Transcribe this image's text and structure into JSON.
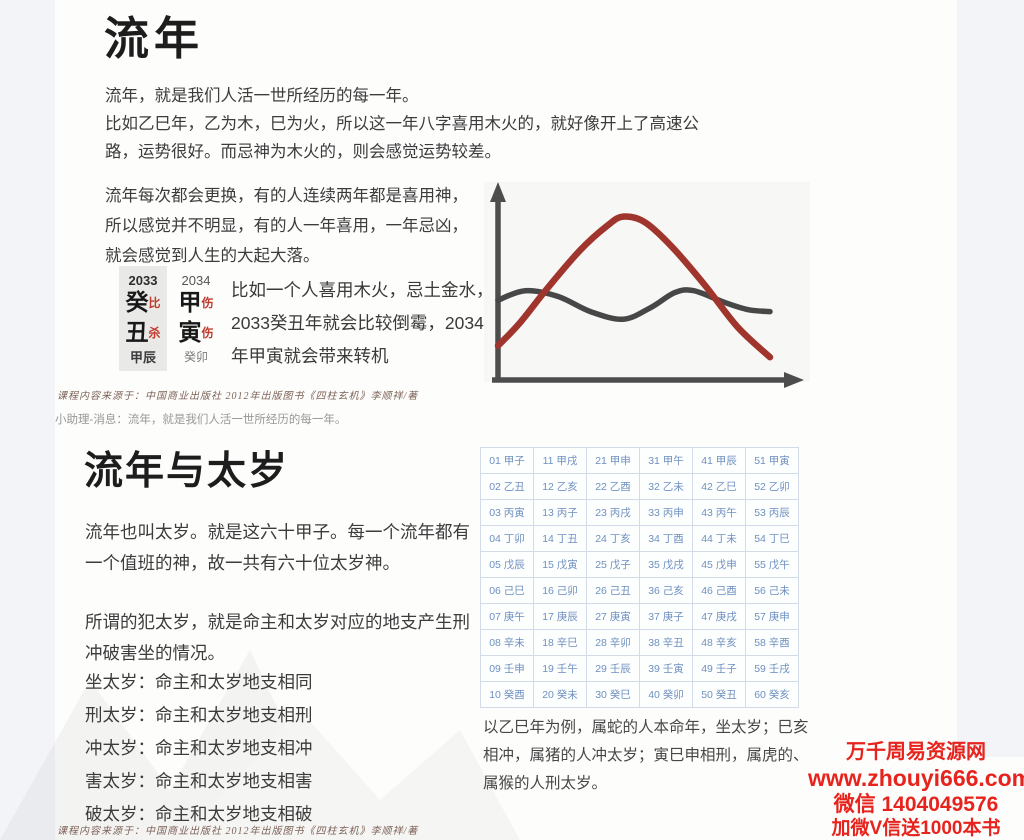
{
  "section_liunian": {
    "title": "流年",
    "para1": "流年，就是我们人活一世所经历的每一年。\n比如乙巳年，乙为木，巳为火，所以这一年八字喜用木火的，就好像开上了高速公\n路，运势很好。而忌神为木火的，则会感觉运势较差。",
    "para2": "流年每次都会更换，有的人连续两年都是喜用神，\n所以感觉并不明显，有的人一年喜用，一年忌凶，\n就会感觉到人生的大起大落。",
    "bazi_example": {
      "years": [
        {
          "year": "2033",
          "stem": "癸",
          "stem_tag": "比",
          "branch": "丑",
          "branch_tag": "杀",
          "hidden": "甲辰"
        },
        {
          "year": "2034",
          "stem": "甲",
          "stem_tag": "伤",
          "branch": "寅",
          "branch_tag": "伤",
          "hidden": "癸卯"
        }
      ],
      "caption": "比如一个人喜用木火，忌土金水，\n2033癸丑年就会比较倒霉，2034\n年甲寅就会带来转机",
      "tag_color": "#c23a2e",
      "highlight_bg": "#e9e9e8"
    },
    "source_note": "课程内容来源于：中国商业出版社 2012年出版图书《四柱玄机》李顺祥/著",
    "chat_message": "小助理-消息：流年，就是我们人活一世所经历的每一年。"
  },
  "section_taisui": {
    "title": "流年与太岁",
    "para1": "流年也叫太岁。就是这六十甲子。每一个流年都有\n一个值班的神，故一共有六十位太岁神。",
    "para2": "所谓的犯太岁，就是命主和太岁对应的地支产生刑\n冲破害坐的情况。",
    "rules": [
      "坐太岁：命主和太岁地支相同",
      "刑太岁：命主和太岁地支相刑",
      "冲太岁：命主和太岁地支相冲",
      "害太岁：命主和太岁地支相害",
      "破太岁：命主和太岁地支相破"
    ],
    "jiazi_table": {
      "text_color": "#6e90c0",
      "rows": [
        [
          "01 甲子",
          "11 甲戌",
          "21 甲申",
          "31 甲午",
          "41 甲辰",
          "51 甲寅"
        ],
        [
          "02 乙丑",
          "12 乙亥",
          "22 乙酉",
          "32 乙未",
          "42 乙巳",
          "52 乙卯"
        ],
        [
          "03 丙寅",
          "13 丙子",
          "23 丙戌",
          "33 丙申",
          "43 丙午",
          "53 丙辰"
        ],
        [
          "04 丁卯",
          "14 丁丑",
          "24 丁亥",
          "34 丁酉",
          "44 丁未",
          "54 丁巳"
        ],
        [
          "05 戊辰",
          "15 戊寅",
          "25 戊子",
          "35 戊戌",
          "45 戊申",
          "55 戊午"
        ],
        [
          "06 己巳",
          "16 己卯",
          "26 己丑",
          "36 己亥",
          "46 己酉",
          "56 己未"
        ],
        [
          "07 庚午",
          "17 庚辰",
          "27 庚寅",
          "37 庚子",
          "47 庚戌",
          "57 庚申"
        ],
        [
          "08 辛未",
          "18 辛巳",
          "28 辛卯",
          "38 辛丑",
          "48 辛亥",
          "58 辛酉"
        ],
        [
          "09 壬申",
          "19 壬午",
          "29 壬辰",
          "39 壬寅",
          "49 壬子",
          "59 壬戌"
        ],
        [
          "10 癸酉",
          "20 癸未",
          "30 癸巳",
          "40 癸卯",
          "50 癸丑",
          "60 癸亥"
        ]
      ]
    },
    "example": "以乙巳年为例，属蛇的人本命年，坐太岁；巳亥\n相冲，属猪的人冲太岁；寅巳申相刑，属虎的、\n属猴的人刑太岁。",
    "source_note": "课程内容来源于：中国商业出版社 2012年出版图书《四柱玄机》李顺祥/著"
  },
  "watermark": {
    "site_name": "万千周易资源网",
    "url": "www.zhouyi666.com",
    "wechat": "微信 1404049576",
    "promo": "加微V信送1000本书",
    "color": "#e7231d"
  },
  "chart_data": {
    "type": "line",
    "title": "",
    "xlabel": "",
    "ylabel": "",
    "xlim": [
      0,
      100
    ],
    "ylim": [
      0,
      100
    ],
    "grid": false,
    "legend_position": "none",
    "axis_ticks": [],
    "note": "conceptual fortune-over-time sketch, axes unlabeled with arrowheads",
    "series": [
      {
        "name": "red-curve-big-rise-and-fall",
        "color": "#9f352c",
        "stroke_width": 6.5,
        "points": [
          [
            0,
            18
          ],
          [
            8,
            30
          ],
          [
            18,
            48
          ],
          [
            30,
            68
          ],
          [
            40,
            81
          ],
          [
            46,
            86
          ],
          [
            54,
            83
          ],
          [
            64,
            70
          ],
          [
            76,
            50
          ],
          [
            88,
            28
          ],
          [
            100,
            12
          ]
        ]
      },
      {
        "name": "gray-curve-steady-wave",
        "color": "#474747",
        "stroke_width": 5.5,
        "points": [
          [
            0,
            42
          ],
          [
            10,
            47
          ],
          [
            22,
            44
          ],
          [
            34,
            36
          ],
          [
            46,
            32
          ],
          [
            56,
            38
          ],
          [
            65,
            46
          ],
          [
            72,
            47
          ],
          [
            83,
            41
          ],
          [
            92,
            37
          ],
          [
            100,
            36
          ]
        ]
      }
    ]
  }
}
